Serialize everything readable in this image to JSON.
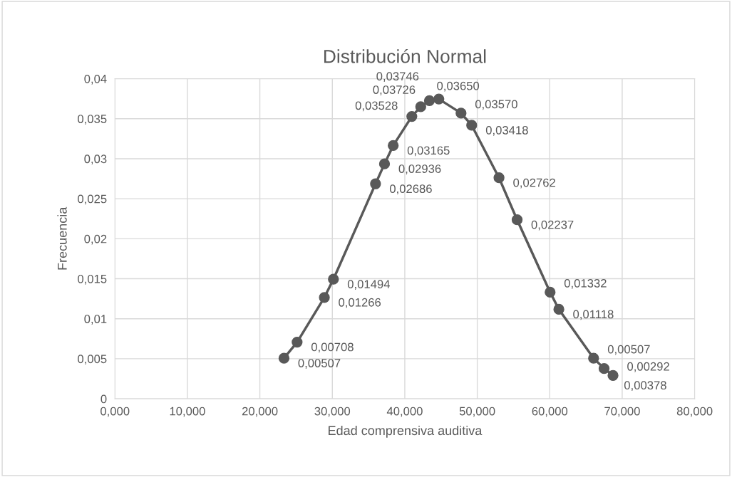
{
  "chart_data": {
    "type": "line",
    "title": "Distribución Normal",
    "xlabel": "Edad comprensiva auditiva",
    "ylabel": "Frecuencia",
    "x": [
      23.33,
      25.14,
      28.9,
      30.15,
      35.96,
      37.2,
      38.4,
      40.97,
      42.2,
      43.4,
      44.7,
      47.76,
      49.23,
      53.0,
      55.5,
      60.05,
      61.26,
      66.05,
      67.5,
      68.73
    ],
    "series": [
      {
        "color": "#595959",
        "values": [
          0.00507,
          0.00708,
          0.01266,
          0.01494,
          0.02686,
          0.02936,
          0.03165,
          0.03528,
          0.0365,
          0.03726,
          0.03746,
          0.0357,
          0.03418,
          0.02762,
          0.02237,
          0.01332,
          0.01118,
          0.00507,
          0.00378,
          0.00292
        ],
        "value_labels": [
          "0,00507",
          "0,00708",
          "0,01266",
          "0,01494",
          "0,02686",
          "0,02936",
          "0,03165",
          "0,03528",
          "0,03650",
          "0,03726",
          "0,03746",
          "0,03570",
          "0,03418",
          "0,02762",
          "0,02237",
          "0,01332",
          "0,01118",
          "0,00507",
          "0,00378",
          "0,00292"
        ]
      }
    ],
    "xlim": [
      0,
      80
    ],
    "xticks": [
      {
        "value": 0,
        "label": "0,000"
      },
      {
        "value": 10,
        "label": "10,000"
      },
      {
        "value": 20,
        "label": "20,000"
      },
      {
        "value": 30,
        "label": "30,000"
      },
      {
        "value": 40,
        "label": "40,000"
      },
      {
        "value": 50,
        "label": "50,000"
      },
      {
        "value": 60,
        "label": "60,000"
      },
      {
        "value": 70,
        "label": "70,000"
      },
      {
        "value": 80,
        "label": "80,000"
      }
    ],
    "ylim": [
      0,
      0.04
    ],
    "yticks": [
      0,
      {
        "value": 0.005,
        "label": "0,005"
      },
      {
        "value": 0.01,
        "label": "0,01"
      },
      {
        "value": 0.015,
        "label": "0,015"
      },
      {
        "value": 0.02,
        "label": "0,02"
      },
      {
        "value": 0.025,
        "label": "0,025"
      },
      {
        "value": 0.03,
        "label": "0,03"
      },
      {
        "value": 0.035,
        "label": "0,035"
      },
      {
        "value": 0.04,
        "label": "0,04"
      }
    ],
    "grid": true,
    "marker": "circle",
    "line_style": "solid"
  }
}
